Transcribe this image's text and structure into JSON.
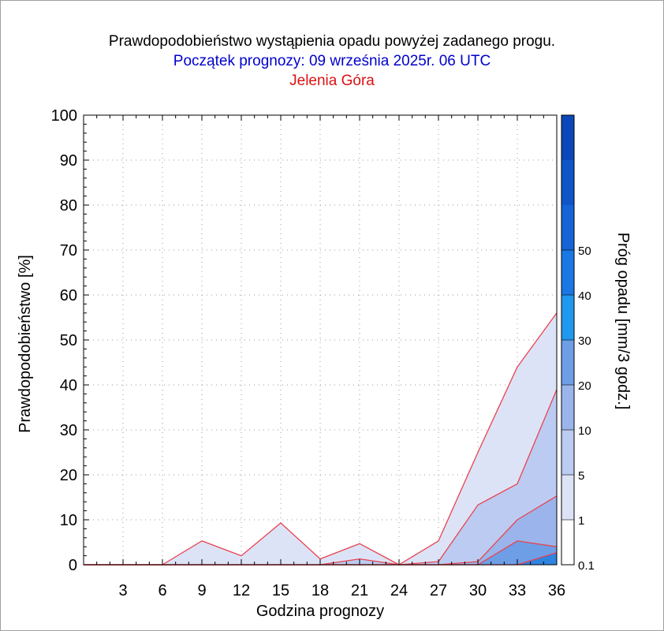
{
  "titles": {
    "main": "Prawdopodobieństwo wystąpienia opadu powyżej zadanego progu.",
    "start": "Początek prognozy: 09 września 2025r. 06 UTC",
    "location": "Jelenia Góra"
  },
  "colors": {
    "title_main": "#000000",
    "title_start": "#0000cc",
    "title_location": "#dd1111",
    "series_line": "#e8434f"
  },
  "chart_data": {
    "type": "area",
    "xlabel": "Godzina prognozy",
    "ylabel": "Prawdopodobieństwo [%]",
    "colorbar_label": "Próg opadu [mm/3 godz.]",
    "xlim": [
      0,
      36
    ],
    "ylim": [
      0,
      100
    ],
    "x_ticks": [
      3,
      6,
      9,
      12,
      15,
      18,
      21,
      24,
      27,
      30,
      33,
      36
    ],
    "y_ticks": [
      0,
      10,
      20,
      30,
      40,
      50,
      60,
      70,
      80,
      90,
      100
    ],
    "grid": true,
    "x": [
      0,
      3,
      6,
      9,
      12,
      15,
      18,
      21,
      24,
      27,
      30,
      33,
      36
    ],
    "series": [
      {
        "threshold": 0.1,
        "fill": "#dde3f7",
        "values": [
          0,
          0,
          0,
          5.3,
          2,
          9.3,
          1.3,
          4.7,
          0,
          5.3,
          25,
          44,
          56
        ]
      },
      {
        "threshold": 1,
        "fill": "#bccbf1",
        "values": [
          0,
          0,
          0,
          0,
          0,
          0,
          0,
          1.3,
          0,
          0.7,
          13.3,
          18,
          39
        ]
      },
      {
        "threshold": 5,
        "fill": "#9bb5ec",
        "values": [
          0,
          0,
          0,
          0,
          0,
          0,
          0,
          0,
          0,
          0,
          0.7,
          10,
          15.3
        ]
      },
      {
        "threshold": 10,
        "fill": "#6e9ee6",
        "values": [
          0,
          0,
          0,
          0,
          0,
          0,
          0,
          0,
          0,
          0,
          0,
          5.3,
          4
        ]
      },
      {
        "threshold": 20,
        "fill": "#2f84e0",
        "values": [
          0,
          0,
          0,
          0,
          0,
          0,
          0,
          0,
          0,
          0,
          0,
          0,
          2.7
        ]
      }
    ],
    "colorbar": {
      "labels": [
        "0.1",
        "1",
        "5",
        "10",
        "20",
        "30",
        "40",
        "50"
      ],
      "colors": [
        "#ffffff",
        "#dde3f7",
        "#bccbf1",
        "#9bb5ec",
        "#6e9ee6",
        "#1f98ee",
        "#1a77e4",
        "#1464d7",
        "#0f55c8",
        "#0b47b8"
      ]
    }
  }
}
